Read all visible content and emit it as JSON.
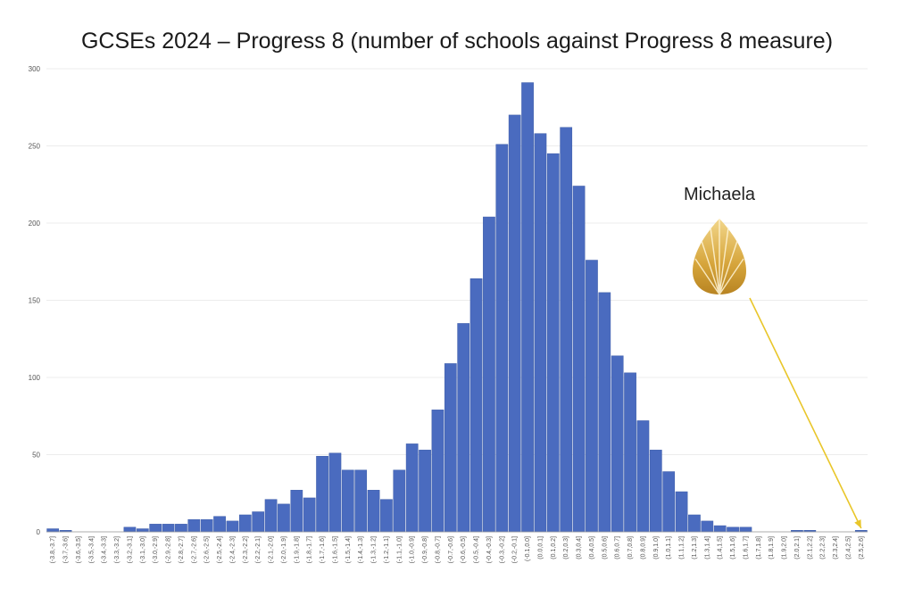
{
  "chart_data": {
    "type": "bar",
    "title": "GCSEs 2024 – Progress 8 (number of schools against Progress 8 measure)",
    "xlabel": "",
    "ylabel": "",
    "ylim": [
      0,
      300
    ],
    "yticks": [
      0,
      50,
      100,
      150,
      200,
      250,
      300
    ],
    "grid": true,
    "categories": [
      "(-3.8,-3.7]",
      "(-3.7,-3.6]",
      "(-3.6,-3.5]",
      "(-3.5,-3.4]",
      "(-3.4,-3.3]",
      "(-3.3,-3.2]",
      "(-3.2,-3.1]",
      "(-3.1,-3.0]",
      "(-3.0,-2.9]",
      "(-2.9,-2.8]",
      "(-2.8,-2.7]",
      "(-2.7,-2.6]",
      "(-2.6,-2.5]",
      "(-2.5,-2.4]",
      "(-2.4,-2.3]",
      "(-2.3,-2.2]",
      "(-2.2,-2.1]",
      "(-2.1,-2.0]",
      "(-2.0,-1.9]",
      "(-1.9,-1.8]",
      "(-1.8,-1.7]",
      "(-1.7,-1.6]",
      "(-1.6,-1.5]",
      "(-1.5,-1.4]",
      "(-1.4,-1.3]",
      "(-1.3,-1.2]",
      "(-1.2,-1.1]",
      "(-1.1,-1.0]",
      "(-1.0,-0.9]",
      "(-0.9,-0.8]",
      "(-0.8,-0.7]",
      "(-0.7,-0.6]",
      "(-0.6,-0.5]",
      "(-0.5,-0.4]",
      "(-0.4,-0.3]",
      "(-0.3,-0.2]",
      "(-0.2,-0.1]",
      "(-0.1,0.0]",
      "(0.0,0.1]",
      "(0.1,0.2]",
      "(0.2,0.3]",
      "(0.3,0.4]",
      "(0.4,0.5]",
      "(0.5,0.6]",
      "(0.6,0.7]",
      "(0.7,0.8]",
      "(0.8,0.9]",
      "(0.9,1.0]",
      "(1.0,1.1]",
      "(1.1,1.2]",
      "(1.2,1.3]",
      "(1.3,1.4]",
      "(1.4,1.5]",
      "(1.5,1.6]",
      "(1.6,1.7]",
      "(1.7,1.8]",
      "(1.8,1.9]",
      "(1.9,2.0]",
      "(2.0,2.1]",
      "(2.1,2.2]",
      "(2.2,2.3]",
      "(2.3,2.4]",
      "(2.4,2.5]",
      "(2.5,2.6]"
    ],
    "values": [
      2,
      1,
      0,
      0,
      0,
      0,
      3,
      2,
      5,
      5,
      5,
      8,
      8,
      10,
      7,
      11,
      13,
      21,
      18,
      27,
      22,
      49,
      51,
      40,
      40,
      27,
      21,
      40,
      57,
      53,
      79,
      109,
      135,
      164,
      204,
      251,
      270,
      291,
      258,
      245,
      262,
      224,
      176,
      155,
      114,
      103,
      72,
      53,
      39,
      26,
      11,
      7,
      4,
      3,
      3,
      0,
      0,
      0,
      1,
      1,
      0,
      0,
      0,
      1
    ],
    "annotations": [
      {
        "text": "Michaela",
        "target_category": "(2.5,2.6]",
        "arrow_color": "#e9c62a"
      }
    ],
    "colors": {
      "bar": "#4a6bbf",
      "arrow": "#e9c62a",
      "logo": "#d9a93a"
    }
  }
}
